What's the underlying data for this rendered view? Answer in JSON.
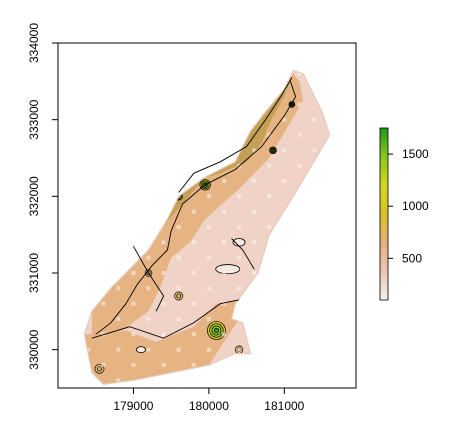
{
  "chart_data": {
    "type": "heatmap",
    "title": "",
    "xlabel": "",
    "ylabel": "",
    "xlim": [
      178000,
      181950
    ],
    "ylim": [
      329500,
      334000
    ],
    "x_ticks": [
      179000,
      180000,
      181000
    ],
    "x_tick_labels": [
      "179000",
      "180000",
      "181000"
    ],
    "y_ticks": [
      330000,
      331000,
      332000,
      333000,
      334000
    ],
    "y_tick_labels": [
      "330000",
      "331000",
      "332000",
      "333000",
      "334000"
    ],
    "legend_position": "right",
    "colorbar": {
      "range": [
        100,
        1750
      ],
      "ticks": [
        500,
        1000,
        1500
      ],
      "tick_labels": [
        "500",
        "1000",
        "1500"
      ],
      "colors": [
        "#f2f2f2",
        "#ecc6b4",
        "#e6b07a",
        "#dcc22c",
        "#d2d81c",
        "#88c81c",
        "#1a9a1a"
      ]
    },
    "field_colors": {
      "low": "#f1d2c6",
      "mid": "#e6b482",
      "high": "#c4a055",
      "peak": "#2f9a2a",
      "contour": "#000000",
      "grid_point": "#fafafa"
    },
    "region_outline": [
      [
        181120,
        333640
      ],
      [
        181250,
        333600
      ],
      [
        181500,
        333100
      ],
      [
        181600,
        332800
      ],
      [
        181450,
        332550
      ],
      [
        181150,
        332050
      ],
      [
        180800,
        331500
      ],
      [
        180650,
        331000
      ],
      [
        180350,
        330600
      ],
      [
        180300,
        330400
      ],
      [
        180450,
        330350
      ],
      [
        180550,
        329950
      ],
      [
        180350,
        329950
      ],
      [
        180000,
        329800
      ],
      [
        179500,
        329700
      ],
      [
        179000,
        329600
      ],
      [
        178600,
        329550
      ],
      [
        178450,
        329700
      ],
      [
        178350,
        330200
      ],
      [
        178450,
        330500
      ],
      [
        178700,
        330800
      ],
      [
        178900,
        331000
      ],
      [
        179200,
        331300
      ],
      [
        179450,
        331700
      ],
      [
        179600,
        332000
      ],
      [
        179950,
        332250
      ],
      [
        180350,
        332450
      ],
      [
        180550,
        332850
      ],
      [
        180750,
        333100
      ],
      [
        181000,
        333400
      ]
    ],
    "mid_zone": [
      [
        181120,
        333600
      ],
      [
        181200,
        333500
      ],
      [
        181250,
        333250
      ],
      [
        181100,
        333000
      ],
      [
        180800,
        332500
      ],
      [
        180400,
        332100
      ],
      [
        179950,
        331700
      ],
      [
        179750,
        331400
      ],
      [
        179500,
        331200
      ],
      [
        179350,
        330800
      ],
      [
        179200,
        330500
      ],
      [
        178850,
        330250
      ],
      [
        178450,
        330200
      ],
      [
        178450,
        330500
      ],
      [
        178700,
        330800
      ],
      [
        178900,
        331000
      ],
      [
        179200,
        331300
      ],
      [
        179450,
        331700
      ],
      [
        179600,
        332000
      ],
      [
        179950,
        332250
      ],
      [
        180350,
        332450
      ],
      [
        180550,
        332850
      ],
      [
        180750,
        333100
      ],
      [
        181000,
        333400
      ]
    ],
    "high_zone": [
      [
        181120,
        333600
      ],
      [
        181000,
        333300
      ],
      [
        180850,
        333050
      ],
      [
        180700,
        332700
      ],
      [
        180500,
        332450
      ],
      [
        180150,
        332300
      ],
      [
        179800,
        332200
      ],
      [
        179600,
        332000
      ],
      [
        179450,
        331700
      ],
      [
        179300,
        331500
      ],
      [
        179950,
        332250
      ],
      [
        180350,
        332450
      ],
      [
        180550,
        332850
      ],
      [
        180750,
        333100
      ],
      [
        181000,
        333400
      ]
    ],
    "lower_mid_zone": [
      [
        178450,
        330200
      ],
      [
        178900,
        330250
      ],
      [
        179300,
        330100
      ],
      [
        179800,
        330300
      ],
      [
        180100,
        330600
      ],
      [
        180400,
        330650
      ],
      [
        180400,
        330400
      ],
      [
        180000,
        329800
      ],
      [
        179500,
        329700
      ],
      [
        179000,
        329600
      ],
      [
        178600,
        329550
      ],
      [
        178450,
        329700
      ],
      [
        178350,
        330200
      ]
    ],
    "contours": [
      [
        [
          181080,
          333500
        ],
        [
          181150,
          333300
        ],
        [
          181000,
          333050
        ],
        [
          180700,
          332650
        ],
        [
          180350,
          332350
        ],
        [
          179950,
          332150
        ],
        [
          179650,
          331900
        ],
        [
          179500,
          331550
        ],
        [
          179450,
          331300
        ],
        [
          179250,
          331100
        ],
        [
          179050,
          330850
        ],
        [
          178900,
          330600
        ],
        [
          178700,
          330350
        ],
        [
          178500,
          330200
        ]
      ],
      [
        [
          181100,
          333550
        ],
        [
          180950,
          333300
        ],
        [
          180750,
          333000
        ],
        [
          180500,
          332650
        ],
        [
          180150,
          332450
        ],
        [
          179800,
          332300
        ],
        [
          179600,
          332050
        ]
      ],
      [
        [
          178450,
          330150
        ],
        [
          178950,
          330300
        ],
        [
          179400,
          330150
        ],
        [
          179800,
          330350
        ],
        [
          180150,
          330600
        ],
        [
          180400,
          330650
        ]
      ],
      [
        [
          180300,
          331450
        ],
        [
          180450,
          331300
        ],
        [
          180600,
          331050
        ]
      ],
      [
        [
          179000,
          331350
        ],
        [
          179200,
          331000
        ],
        [
          179400,
          330700
        ],
        [
          179300,
          330500
        ]
      ]
    ],
    "hotspots": [
      {
        "x": 180100,
        "y": 330250,
        "r": 120,
        "level": "peak"
      },
      {
        "x": 179950,
        "y": 332150,
        "r": 70,
        "level": "peak"
      },
      {
        "x": 179600,
        "y": 332000,
        "r": 50,
        "level": "peak"
      },
      {
        "x": 180850,
        "y": 332600,
        "r": 45,
        "level": "peak"
      },
      {
        "x": 181100,
        "y": 333200,
        "r": 40,
        "level": "peak"
      },
      {
        "x": 178700,
        "y": 330850,
        "r": 40,
        "level": "peak"
      },
      {
        "x": 178550,
        "y": 329750,
        "r": 60,
        "level": "mid"
      },
      {
        "x": 179200,
        "y": 331000,
        "r": 45,
        "level": "mid"
      },
      {
        "x": 180400,
        "y": 330000,
        "r": 50,
        "level": "mid"
      },
      {
        "x": 179600,
        "y": 330700,
        "r": 55,
        "level": "mid"
      }
    ],
    "low_islands": [
      {
        "x": 180250,
        "y": 331050,
        "rx": 160,
        "ry": 60
      },
      {
        "x": 180400,
        "y": 331400,
        "rx": 80,
        "ry": 50
      },
      {
        "x": 179200,
        "y": 331800,
        "rx": 60,
        "ry": 50
      },
      {
        "x": 179100,
        "y": 330000,
        "rx": 60,
        "ry": 40
      }
    ]
  }
}
